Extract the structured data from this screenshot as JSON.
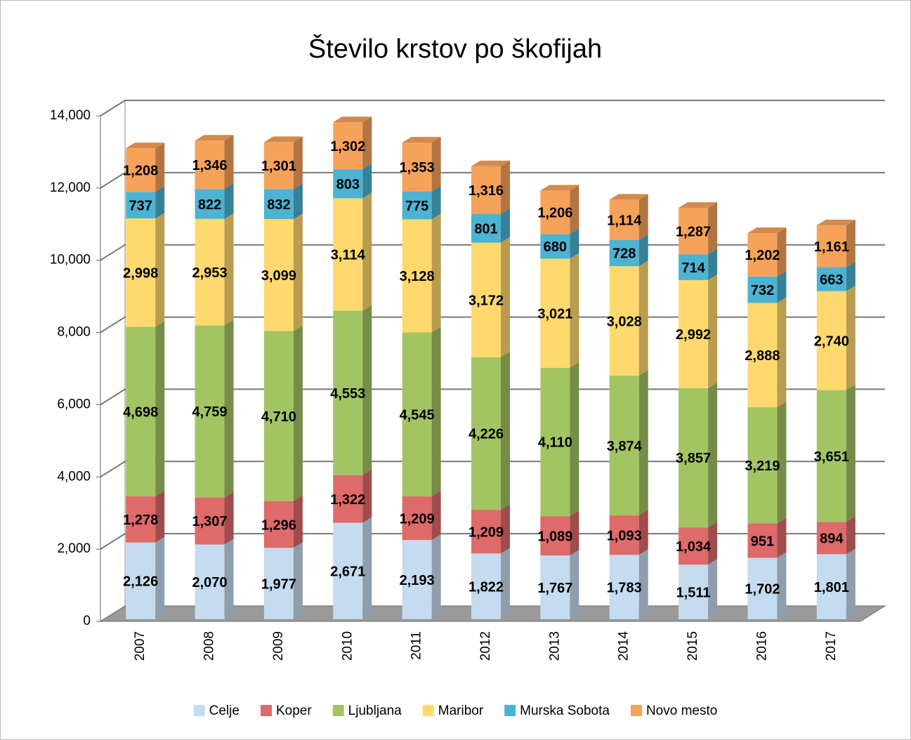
{
  "chart_data": {
    "type": "bar3d_stacked",
    "title": "Število krstov po škofijah",
    "categories": [
      "2007",
      "2008",
      "2009",
      "2010",
      "2011",
      "2012",
      "2013",
      "2014",
      "2015",
      "2016",
      "2017"
    ],
    "series": [
      {
        "name": "Celje",
        "color": "#c5dbef",
        "values": [
          2126,
          2070,
          1977,
          2671,
          2193,
          1822,
          1767,
          1783,
          1511,
          1702,
          1801
        ],
        "value_labels": [
          "2,126",
          "2,070",
          "1,977",
          "2,671",
          "2,193",
          "1,822",
          "1,767",
          "1,783",
          "1,511",
          "1,702",
          "1,801"
        ]
      },
      {
        "name": "Koper",
        "color": "#de6a6a",
        "values": [
          1278,
          1307,
          1296,
          1322,
          1209,
          1209,
          1089,
          1093,
          1034,
          951,
          894
        ],
        "value_labels": [
          "1,278",
          "1,307",
          "1,296",
          "1,322",
          "1,209",
          "1,209",
          "1,089",
          "1,093",
          "1,034",
          "951",
          "894"
        ]
      },
      {
        "name": "Ljubljana",
        "color": "#a3c463",
        "values": [
          4698,
          4759,
          4710,
          4553,
          4545,
          4226,
          4110,
          3874,
          3857,
          3219,
          3651
        ],
        "value_labels": [
          "4,698",
          "4,759",
          "4,710",
          "4,553",
          "4,545",
          "4,226",
          "4,110",
          "3,874",
          "3,857",
          "3,219",
          "3,651"
        ]
      },
      {
        "name": "Maribor",
        "color": "#ffd96e",
        "values": [
          2998,
          2953,
          3099,
          3114,
          3128,
          3172,
          3021,
          3028,
          2992,
          2888,
          2740
        ],
        "value_labels": [
          "2,998",
          "2,953",
          "3,099",
          "3,114",
          "3,128",
          "3,172",
          "3,021",
          "3,028",
          "2,992",
          "2,888",
          "2,740"
        ]
      },
      {
        "name": "Murska Sobota",
        "color": "#4cb3d3",
        "values": [
          737,
          822,
          832,
          803,
          775,
          801,
          680,
          728,
          714,
          732,
          663
        ]
      },
      {
        "name": "Novo mesto",
        "color": "#f7a25a",
        "values": [
          1208,
          1346,
          1301,
          1302,
          1353,
          1316,
          1206,
          1114,
          1287,
          1202,
          1161
        ],
        "value_labels": [
          "1,208",
          "1,346",
          "1,301",
          "1,302",
          "1,353",
          "1,316",
          "1,206",
          "1,114",
          "1,287",
          "1,202",
          "1,161"
        ]
      }
    ],
    "ylim": [
      0,
      14000
    ],
    "yticks": [
      0,
      {
        "value": 2000,
        "label": "2,000"
      },
      {
        "value": 4000,
        "label": "4,000"
      },
      {
        "value": 6000,
        "label": "6,000"
      },
      {
        "value": 8000,
        "label": "8,000"
      },
      {
        "value": 10000,
        "label": "10,000"
      },
      {
        "value": 12000,
        "label": "12,000"
      },
      {
        "value": 14000,
        "label": "14,000"
      }
    ],
    "grid": true,
    "legend": "bottom"
  }
}
